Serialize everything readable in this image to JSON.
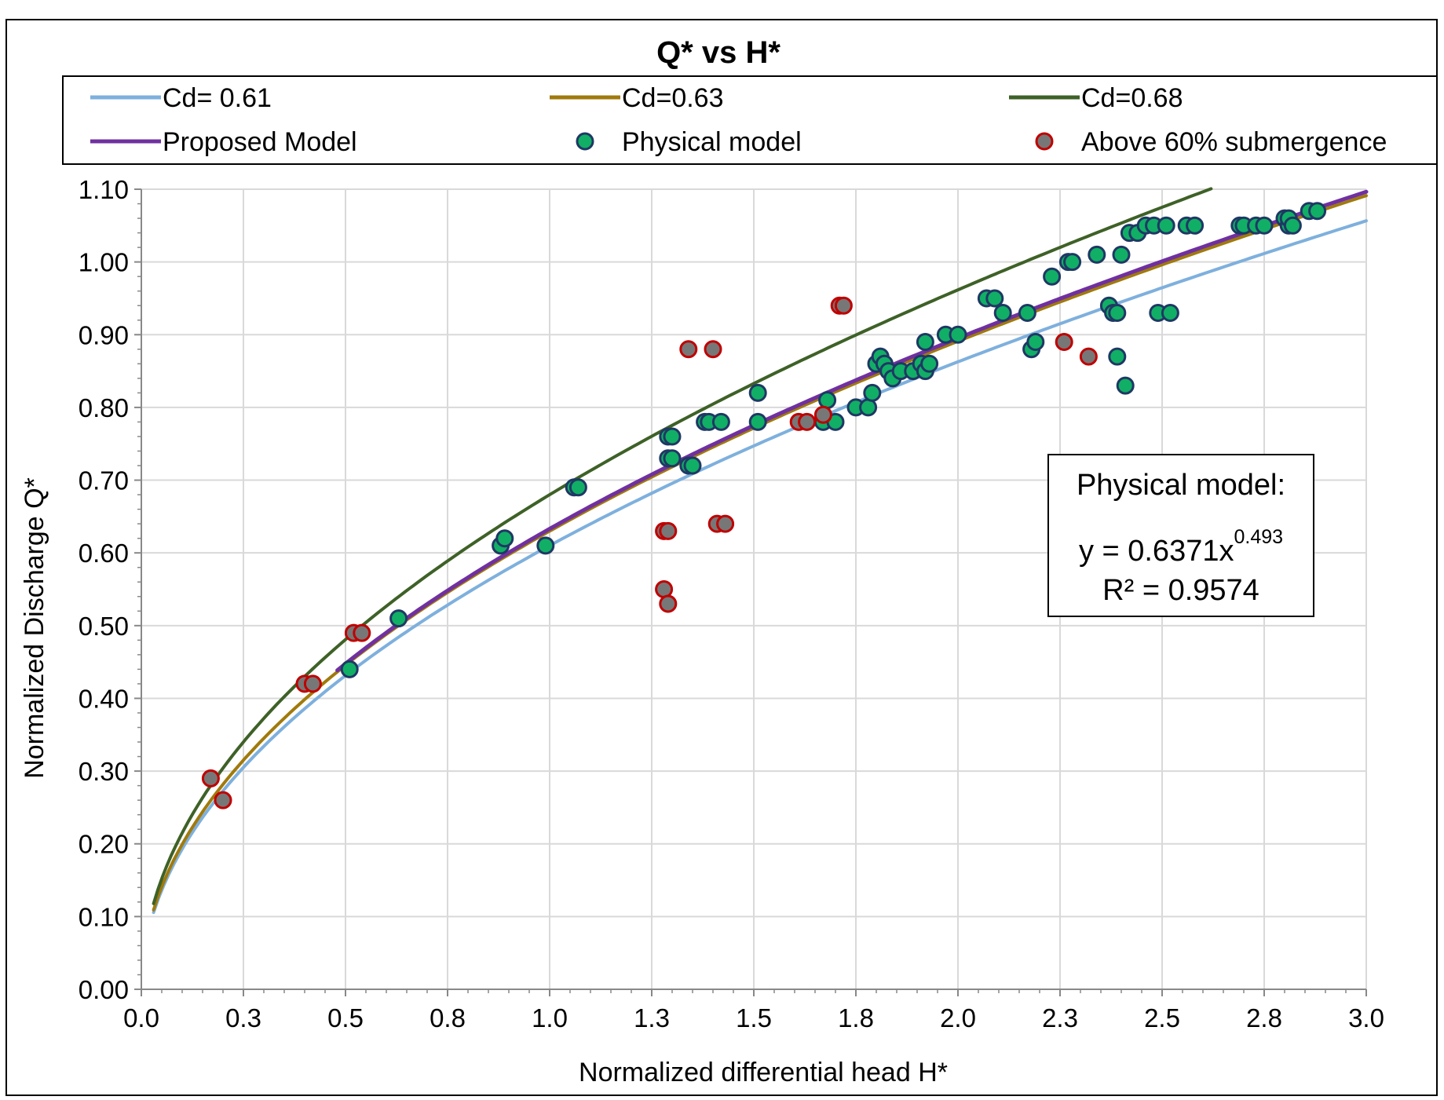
{
  "colors": {
    "cd061": "#7EB0DD",
    "cd063": "#A07A0C",
    "cd068": "#3E6127",
    "proposed": "#7030A0",
    "physical_fill": "#10AF65",
    "physical_edge": "#1F3864",
    "above60_fill": "#777777",
    "above60_edge": "#C00000",
    "grid": "#D9D9D9"
  },
  "chart_data": {
    "type": "scatter",
    "title": "Q* vs H*",
    "xlabel": "Normalized differential head H*",
    "ylabel": "Normalized Discharge Q*",
    "xlim": [
      0,
      3.0
    ],
    "ylim": [
      0,
      1.1
    ],
    "x_ticks": [
      0,
      0.25,
      0.5,
      0.75,
      1.0,
      1.25,
      1.5,
      1.75,
      2.0,
      2.25,
      2.5,
      2.75,
      3.0
    ],
    "x_tick_labels": [
      "0.0",
      "0.3",
      "0.5",
      "0.8",
      "1.0",
      "1.3",
      "1.5",
      "1.8",
      "2.0",
      "2.3",
      "2.5",
      "2.8",
      "3.0"
    ],
    "y_ticks": [
      0,
      0.1,
      0.2,
      0.3,
      0.4,
      0.5,
      0.6,
      0.7,
      0.8,
      0.9,
      1.0,
      1.1
    ],
    "y_tick_labels": [
      "0.00",
      "0.10",
      "0.20",
      "0.30",
      "0.40",
      "0.50",
      "0.60",
      "0.70",
      "0.80",
      "0.90",
      "1.00",
      "1.10"
    ],
    "grid": true,
    "legend_position": "top",
    "legend": [
      {
        "label": "Cd= 0.61",
        "kind": "line",
        "series": "cd061"
      },
      {
        "label": "Cd=0.63",
        "kind": "line",
        "series": "cd063"
      },
      {
        "label": "Cd=0.68",
        "kind": "line",
        "series": "cd068"
      },
      {
        "label": "Proposed Model",
        "kind": "line",
        "series": "proposed"
      },
      {
        "label": "Physical model",
        "kind": "marker",
        "series": "physical"
      },
      {
        "label": "Above 60% submergence",
        "kind": "marker",
        "series": "above60"
      }
    ],
    "curves": [
      {
        "key": "cd061",
        "name": "Cd= 0.61",
        "coef": 0.61,
        "exp": 0.5,
        "x_range": [
          0.03,
          3.0
        ]
      },
      {
        "key": "cd063",
        "name": "Cd=0.63",
        "coef": 0.63,
        "exp": 0.5,
        "x_range": [
          0.03,
          3.0
        ]
      },
      {
        "key": "cd068",
        "name": "Cd=0.68",
        "coef": 0.68,
        "exp": 0.5,
        "x_range": [
          0.03,
          2.62
        ]
      },
      {
        "key": "proposed",
        "name": "Proposed Model",
        "coef": 0.633,
        "exp": 0.5,
        "x_range": [
          0.48,
          3.0
        ]
      }
    ],
    "series": [
      {
        "name": "Physical model",
        "key": "physical",
        "points": [
          [
            0.51,
            0.44
          ],
          [
            0.63,
            0.51
          ],
          [
            0.88,
            0.61
          ],
          [
            0.89,
            0.62
          ],
          [
            0.99,
            0.61
          ],
          [
            1.06,
            0.69
          ],
          [
            1.07,
            0.69
          ],
          [
            1.29,
            0.76
          ],
          [
            1.3,
            0.76
          ],
          [
            1.29,
            0.73
          ],
          [
            1.3,
            0.73
          ],
          [
            1.34,
            0.72
          ],
          [
            1.35,
            0.72
          ],
          [
            1.38,
            0.78
          ],
          [
            1.39,
            0.78
          ],
          [
            1.42,
            0.78
          ],
          [
            1.51,
            0.78
          ],
          [
            1.51,
            0.82
          ],
          [
            1.67,
            0.78
          ],
          [
            1.68,
            0.81
          ],
          [
            1.7,
            0.78
          ],
          [
            1.75,
            0.8
          ],
          [
            1.78,
            0.8
          ],
          [
            1.79,
            0.82
          ],
          [
            1.8,
            0.86
          ],
          [
            1.81,
            0.87
          ],
          [
            1.82,
            0.86
          ],
          [
            1.83,
            0.85
          ],
          [
            1.84,
            0.84
          ],
          [
            1.86,
            0.85
          ],
          [
            1.89,
            0.85
          ],
          [
            1.91,
            0.86
          ],
          [
            1.92,
            0.85
          ],
          [
            1.93,
            0.86
          ],
          [
            1.92,
            0.89
          ],
          [
            1.97,
            0.9
          ],
          [
            2.0,
            0.9
          ],
          [
            2.07,
            0.95
          ],
          [
            2.09,
            0.95
          ],
          [
            2.11,
            0.93
          ],
          [
            2.17,
            0.93
          ],
          [
            2.18,
            0.88
          ],
          [
            2.19,
            0.89
          ],
          [
            2.23,
            0.98
          ],
          [
            2.27,
            1.0
          ],
          [
            2.28,
            1.0
          ],
          [
            2.34,
            1.01
          ],
          [
            2.37,
            0.94
          ],
          [
            2.38,
            0.93
          ],
          [
            2.39,
            0.93
          ],
          [
            2.39,
            0.87
          ],
          [
            2.4,
            1.01
          ],
          [
            2.41,
            0.83
          ],
          [
            2.42,
            1.04
          ],
          [
            2.44,
            1.04
          ],
          [
            2.46,
            1.05
          ],
          [
            2.48,
            1.05
          ],
          [
            2.49,
            0.93
          ],
          [
            2.51,
            1.05
          ],
          [
            2.52,
            0.93
          ],
          [
            2.56,
            1.05
          ],
          [
            2.58,
            1.05
          ],
          [
            2.69,
            1.05
          ],
          [
            2.7,
            1.05
          ],
          [
            2.73,
            1.05
          ],
          [
            2.75,
            1.05
          ],
          [
            2.8,
            1.06
          ],
          [
            2.81,
            1.05
          ],
          [
            2.81,
            1.06
          ],
          [
            2.82,
            1.05
          ],
          [
            2.86,
            1.07
          ],
          [
            2.88,
            1.07
          ]
        ]
      },
      {
        "name": "Above 60% submergence",
        "key": "above60",
        "points": [
          [
            0.17,
            0.29
          ],
          [
            0.2,
            0.26
          ],
          [
            0.4,
            0.42
          ],
          [
            0.42,
            0.42
          ],
          [
            0.52,
            0.49
          ],
          [
            0.54,
            0.49
          ],
          [
            1.28,
            0.55
          ],
          [
            1.29,
            0.53
          ],
          [
            1.28,
            0.63
          ],
          [
            1.29,
            0.63
          ],
          [
            1.34,
            0.88
          ],
          [
            1.4,
            0.88
          ],
          [
            1.41,
            0.64
          ],
          [
            1.43,
            0.64
          ],
          [
            1.61,
            0.78
          ],
          [
            1.63,
            0.78
          ],
          [
            1.67,
            0.79
          ],
          [
            1.71,
            0.94
          ],
          [
            1.72,
            0.94
          ],
          [
            2.26,
            0.89
          ],
          [
            2.32,
            0.87
          ]
        ]
      }
    ],
    "annotation": {
      "heading": "Physical model:",
      "equation_prefix": "y = 0.6371x",
      "equation_exponent": "0.493",
      "r_squared": "R² = 0.9574"
    }
  }
}
